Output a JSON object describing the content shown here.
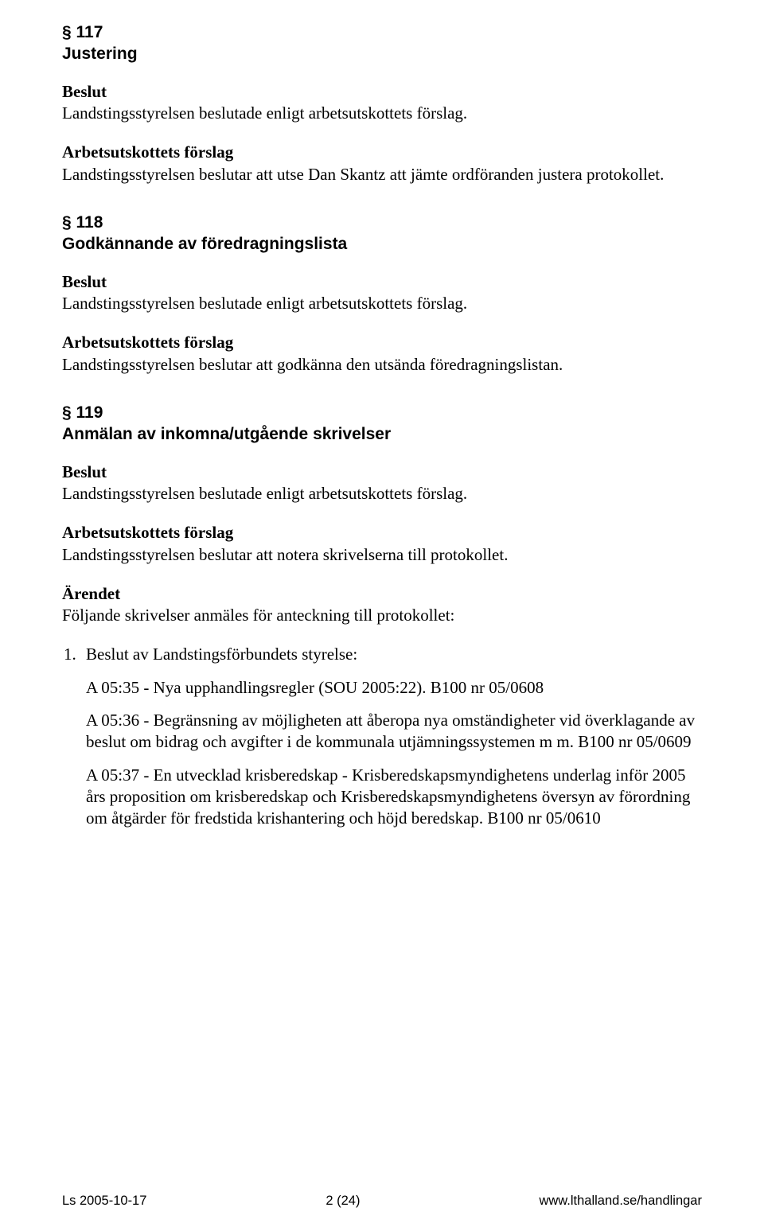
{
  "sections": [
    {
      "num": "§ 117",
      "title": "Justering",
      "blocks": [
        {
          "lead": "Beslut",
          "text": "Landstingsstyrelsen beslutade enligt arbetsutskottets förslag."
        },
        {
          "lead": "Arbetsutskottets förslag",
          "text": "Landstingsstyrelsen beslutar att utse Dan Skantz att jämte ordföranden justera protokollet."
        }
      ]
    },
    {
      "num": "§ 118",
      "title": "Godkännande av föredragningslista",
      "blocks": [
        {
          "lead": "Beslut",
          "text": "Landstingsstyrelsen beslutade enligt arbetsutskottets förslag."
        },
        {
          "lead": "Arbetsutskottets förslag",
          "text": "Landstingsstyrelsen beslutar att godkänna den utsända föredragningslistan."
        }
      ]
    },
    {
      "num": "§ 119",
      "title": "Anmälan av inkomna/utgående skrivelser",
      "blocks": [
        {
          "lead": "Beslut",
          "text": "Landstingsstyrelsen beslutade enligt arbetsutskottets förslag."
        },
        {
          "lead": "Arbetsutskottets förslag",
          "text": "Landstingsstyrelsen beslutar att notera skrivelserna till protokollet."
        },
        {
          "lead": "Ärendet",
          "text": "Följande skrivelser anmäles för anteckning till protokollet:"
        }
      ],
      "list": {
        "marker": "1.",
        "lead_text": "Beslut av Landstingsförbundets styrelse:",
        "subs": [
          "A 05:35 - Nya upphandlingsregler (SOU 2005:22). B100 nr 05/0608",
          "A 05:36 - Begränsning av möjligheten att åberopa nya omständigheter vid överklagande av beslut om bidrag och avgifter i de kommunala utjämnings­systemen m m. B100 nr 05/0609",
          "A 05:37 - En utvecklad krisberedskap - Krisberedskapsmyndighetens underlag inför 2005 års proposition om krisberedskap och Krisberedskapsmyndighetens översyn av förordning om åtgärder för fredstida krishantering och höjd bered­skap. B100 nr 05/0610"
        ]
      }
    }
  ],
  "footer": {
    "left": "Ls 2005-10-17",
    "center": "2 (24)",
    "right": "www.lthalland.se/handlingar"
  }
}
